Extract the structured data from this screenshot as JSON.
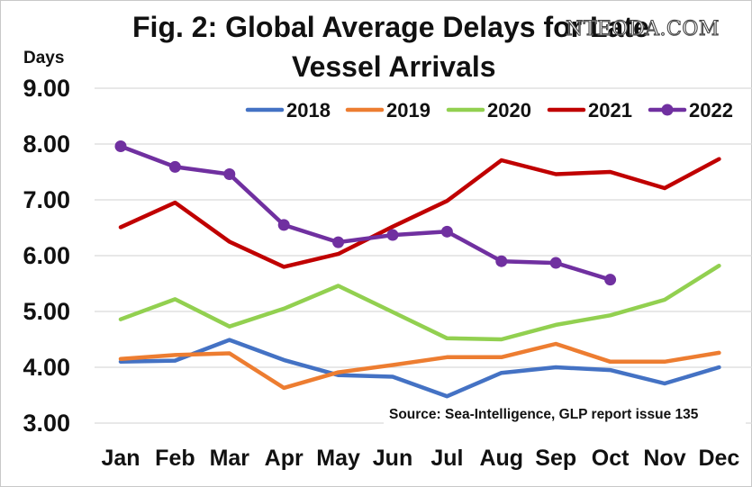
{
  "header": {
    "title_line1": "Fig. 2: Global Average Delays for Late",
    "title_line2": "Vessel Arrivals",
    "watermark": "NTEODA.COM"
  },
  "chart_data": {
    "type": "line",
    "title": "Fig. 2: Global Average Delays for Late Vessel Arrivals",
    "xlabel": "",
    "ylabel": "Days",
    "ylim": [
      3,
      9
    ],
    "yticks": [
      "3.00",
      "4.00",
      "5.00",
      "6.00",
      "7.00",
      "8.00",
      "9.00"
    ],
    "grid": true,
    "legend_position": "top",
    "categories": [
      "Jan",
      "Feb",
      "Mar",
      "Apr",
      "May",
      "Jun",
      "Jul",
      "Aug",
      "Sep",
      "Oct",
      "Nov",
      "Dec"
    ],
    "series": [
      {
        "name": "2018",
        "color": "#4472c4",
        "markers": false,
        "values": [
          4.1,
          4.12,
          4.49,
          4.13,
          3.86,
          3.83,
          3.48,
          3.9,
          4.0,
          3.95,
          3.71,
          4.0
        ]
      },
      {
        "name": "2019",
        "color": "#ed7d31",
        "markers": false,
        "values": [
          4.15,
          4.22,
          4.25,
          3.63,
          3.91,
          4.04,
          4.18,
          4.18,
          4.42,
          4.1,
          4.1,
          4.26
        ]
      },
      {
        "name": "2020",
        "color": "#92d050",
        "markers": false,
        "values": [
          4.86,
          5.22,
          4.73,
          5.05,
          5.46,
          4.99,
          4.52,
          4.5,
          4.76,
          4.93,
          5.21,
          5.82
        ]
      },
      {
        "name": "2021",
        "color": "#c00000",
        "markers": false,
        "values": [
          6.51,
          6.95,
          6.25,
          5.8,
          6.03,
          6.52,
          6.98,
          7.71,
          7.46,
          7.5,
          7.21,
          7.73
        ]
      },
      {
        "name": "2022",
        "color": "#7030a0",
        "markers": true,
        "values": [
          7.96,
          7.59,
          7.46,
          6.55,
          6.24,
          6.37,
          6.43,
          5.9,
          5.87,
          5.57,
          null,
          null
        ]
      }
    ],
    "annotation": "Source: Sea-Intelligence, GLP report issue 135"
  }
}
